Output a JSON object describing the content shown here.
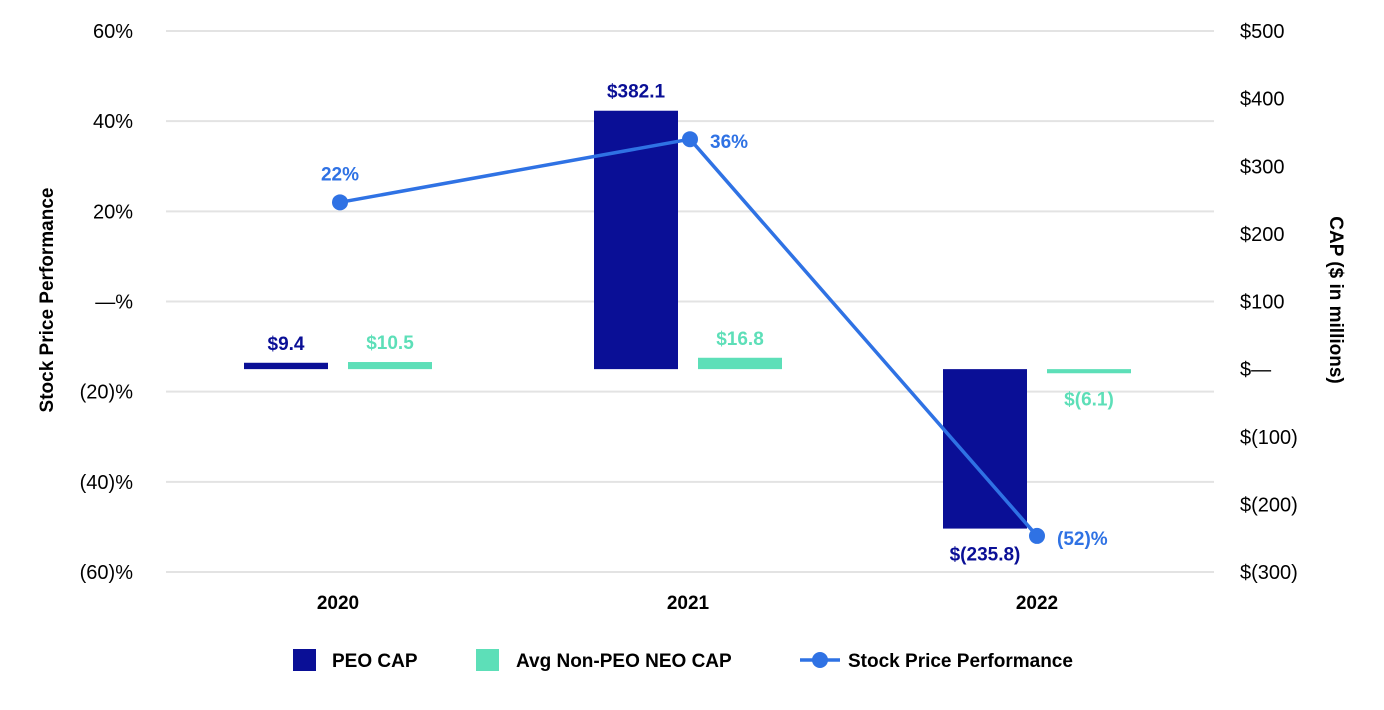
{
  "chart_data": {
    "type": "bar+line",
    "categories": [
      "2020",
      "2021",
      "2022"
    ],
    "series": [
      {
        "name": "PEO CAP",
        "type": "bar",
        "axis": "right",
        "color": "#0a0f96",
        "values": [
          9.4,
          382.1,
          -235.8
        ],
        "labels": [
          "$9.4",
          "$382.1",
          "$(235.8)"
        ]
      },
      {
        "name": "Avg Non-PEO NEO CAP",
        "type": "bar",
        "axis": "right",
        "color": "#5ddfb8",
        "values": [
          10.5,
          16.8,
          -6.1
        ],
        "labels": [
          "$10.5",
          "$16.8",
          "$(6.1)"
        ]
      },
      {
        "name": "Stock Price Performance",
        "type": "line",
        "axis": "left",
        "color": "#2f72e4",
        "values": [
          22,
          36,
          -52
        ],
        "labels": [
          "22%",
          "36%",
          "(52)%"
        ]
      }
    ],
    "y_left": {
      "label": "Stock Price Performance",
      "range": [
        -60,
        60
      ],
      "ticks": [
        60,
        40,
        20,
        0,
        -20,
        -40,
        -60
      ],
      "tick_labels": [
        "60%",
        "40%",
        "20%",
        "—%",
        "(20)%",
        "(40)%",
        "(60)%"
      ]
    },
    "y_right": {
      "label": "CAP ($ in millions)",
      "range": [
        -300,
        500
      ],
      "ticks": [
        500,
        400,
        300,
        200,
        100,
        0,
        -100,
        -200,
        -300
      ],
      "tick_labels": [
        "$500",
        "$400",
        "$300",
        "$200",
        "$100",
        "$—",
        "$(100)",
        "$(200)",
        "$(300)"
      ]
    },
    "grid": true,
    "legend": {
      "position": "bottom-center",
      "entries": [
        "PEO CAP",
        "Avg Non-PEO NEO CAP",
        "Stock Price Performance"
      ]
    }
  }
}
